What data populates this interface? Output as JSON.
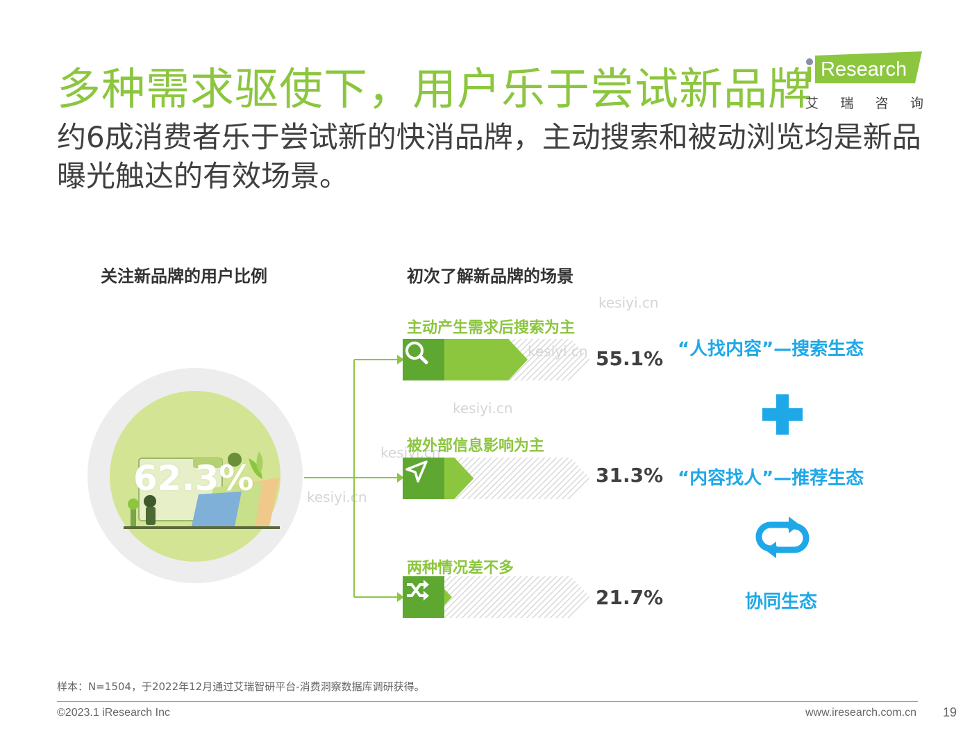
{
  "title": "多种需求驱使下，用户乐于尝试新品牌",
  "subtitle": "约6成消费者乐于尝试新的快消品牌，主动搜索和被动浏览均是新品曝光触达的有效场景。",
  "logo": {
    "brand": "Research",
    "cn_chars": [
      "艾",
      "瑞",
      "咨",
      "询"
    ]
  },
  "left_chart": {
    "heading": "关注新品牌的用户比例",
    "value_label": "62.3%"
  },
  "chart_data": {
    "type": "bar",
    "title": "初次了解新品牌的场景",
    "categories": [
      "主动产生需求后搜索为主",
      "被外部信息影响为主",
      "两种情况差不多"
    ],
    "values": [
      55.1,
      31.3,
      21.7
    ],
    "value_labels": [
      "55.1%",
      "31.3%",
      "21.7%"
    ],
    "icons": [
      "search-icon",
      "send-icon",
      "shuffle-icon"
    ],
    "colors": {
      "fill": "#8cc63f",
      "dark": "#5ea832",
      "hatch": "#d9d9d9"
    },
    "xlim": [
      0,
      100
    ]
  },
  "ecosystem": {
    "search": "“人找内容”—搜索生态",
    "recommend": "“内容找人”—推荐生态",
    "synergy": "协同生态",
    "accent": "#1fa8e8"
  },
  "watermarks": [
    "kesiyi.cn",
    "kesiyi.cn",
    "kesiyi.cn",
    "kesiyi.cn",
    "kesiyi.cn"
  ],
  "footer": {
    "note": "样本：N=1504，于2022年12月通过艾瑞智研平台-消费洞察数据库调研获得。",
    "copyright": "©2023.1 iResearch Inc",
    "website": "www.iresearch.com.cn",
    "page": "19"
  }
}
